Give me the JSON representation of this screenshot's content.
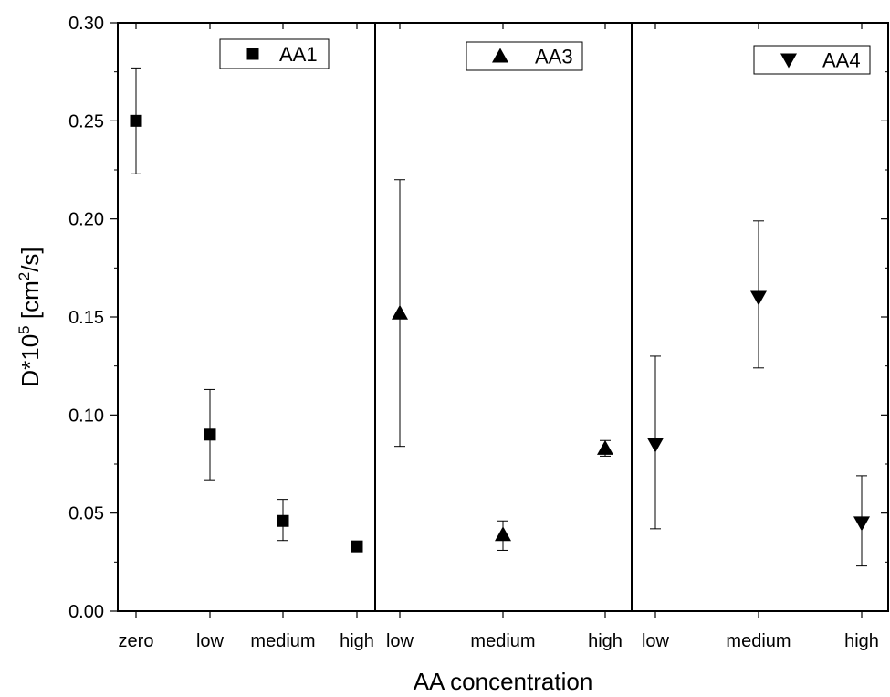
{
  "chart_data": {
    "type": "scatter",
    "xlabel": "AA concentration",
    "ylabel_main": "D*10",
    "ylabel_sup": "5",
    "ylabel_unit_pre": " [cm",
    "ylabel_unit_sup": "2",
    "ylabel_unit_post": "/s]",
    "ylim": [
      0,
      0.3
    ],
    "yticks": [
      "0.00",
      "0.05",
      "0.10",
      "0.15",
      "0.20",
      "0.25",
      "0.30"
    ],
    "grid": false,
    "panels": [
      {
        "legend": "AA1",
        "marker": "square",
        "categories": [
          "zero",
          "low",
          "medium",
          "high"
        ],
        "values": [
          0.25,
          0.09,
          0.046,
          0.033
        ],
        "err_low": [
          0.223,
          0.067,
          0.036,
          0.033
        ],
        "err_high": [
          0.277,
          0.113,
          0.057,
          0.033
        ]
      },
      {
        "legend": "AA3",
        "marker": "triangle-up",
        "categories": [
          "low",
          "medium",
          "high"
        ],
        "values": [
          0.152,
          0.039,
          0.083
        ],
        "err_low": [
          0.084,
          0.031,
          0.079
        ],
        "err_high": [
          0.22,
          0.046,
          0.087
        ]
      },
      {
        "legend": "AA4",
        "marker": "triangle-down",
        "categories": [
          "low",
          "medium",
          "high"
        ],
        "values": [
          0.085,
          0.16,
          0.045
        ],
        "err_low": [
          0.042,
          0.124,
          0.023
        ],
        "err_high": [
          0.13,
          0.199,
          0.069
        ]
      }
    ]
  }
}
